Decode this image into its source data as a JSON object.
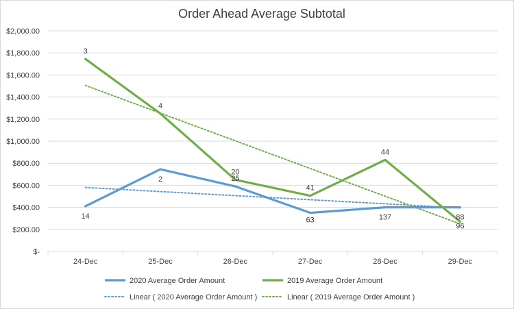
{
  "chart_data": {
    "type": "line",
    "title": "Order Ahead Average Subtotal",
    "categories": [
      "24-Dec",
      "25-Dec",
      "26-Dec",
      "27-Dec",
      "28-Dec",
      "29-Dec"
    ],
    "ylim": [
      0,
      2000
    ],
    "ytick_labels": [
      "$-",
      "$200.00",
      "$400.00",
      "$600.00",
      "$800.00",
      "$1,000.00",
      "$1,200.00",
      "$1,400.00",
      "$1,600.00",
      "$1,800.00",
      "$2,000.00"
    ],
    "grid": true,
    "legend_position": "bottom",
    "series": [
      {
        "name": "2020 Average Order Amount",
        "color": "#5b9bd5",
        "values": [
          410,
          745,
          590,
          350,
          400,
          400
        ],
        "data_labels": [
          "14",
          "2",
          "25",
          "63",
          "137",
          "88"
        ]
      },
      {
        "name": "2019 Average Order Amount",
        "color": "#70ad47",
        "values": [
          1745,
          1250,
          650,
          505,
          830,
          270
        ],
        "data_labels": [
          "3",
          "4",
          "20",
          "41",
          "44",
          "96"
        ]
      }
    ],
    "trendlines": [
      {
        "name": "Linear ( 2020 Average Order Amount )",
        "color": "#5b9bd5",
        "start": 580,
        "end": 395
      },
      {
        "name": "Linear ( 2019 Average Order Amount )",
        "color": "#70ad47",
        "start": 1505,
        "end": 250
      }
    ]
  }
}
